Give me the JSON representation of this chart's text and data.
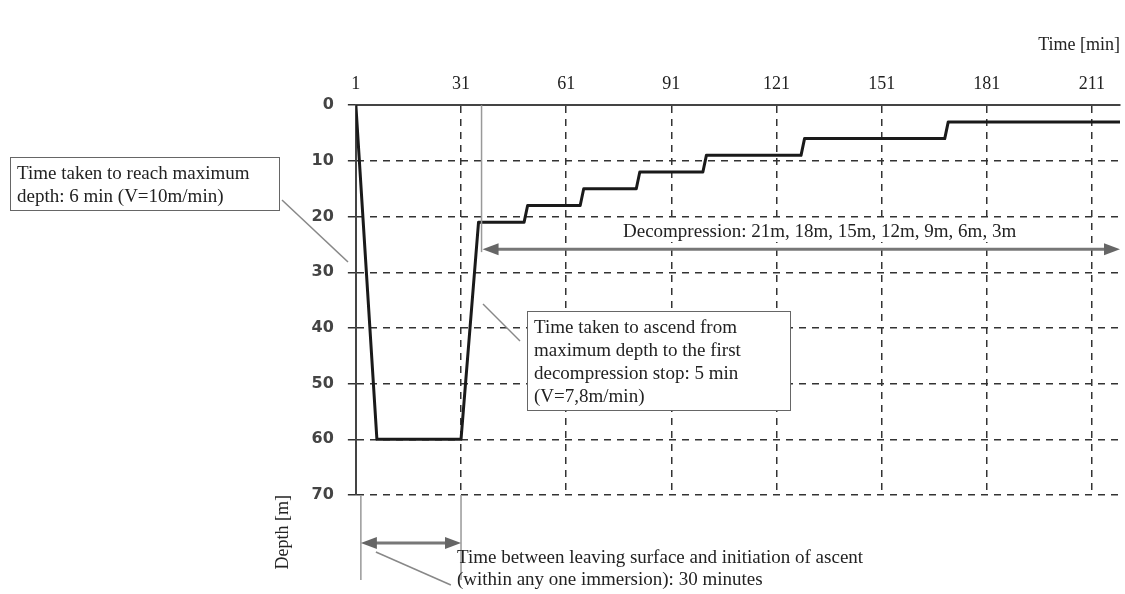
{
  "chart_data": {
    "type": "line",
    "xlabel": "Time [min]",
    "ylabel": "Depth [m]",
    "x": [
      1,
      7,
      31,
      36,
      49,
      50,
      65,
      66,
      81,
      82,
      100,
      101,
      128,
      129,
      169,
      170,
      219
    ],
    "series": [
      {
        "color": "#1a1a1a",
        "values": [
          0,
          60,
          60,
          21,
          21,
          18,
          18,
          15,
          15,
          12,
          12,
          9,
          9,
          6,
          6,
          3,
          3
        ]
      }
    ],
    "xlim": [
      1,
      219
    ],
    "xticks": [
      1,
      31,
      61,
      91,
      121,
      151,
      181,
      211
    ],
    "ylim": [
      70,
      0
    ],
    "yticks": [
      0,
      10,
      20,
      30,
      40,
      50,
      60,
      70
    ],
    "grid": true,
    "legend": false,
    "marker": "none",
    "line_style": "solid",
    "annotations": [
      "Time taken to reach maximum depth: 6 min (V=10m/min)",
      "Time taken to ascend from maximum depth to the first decompression stop: 5 min (V=7,8m/min)",
      "Decompression: 21m, 18m, 15m, 12m, 9m, 6m, 3m",
      "Time between leaving surface and initiation of ascent (within any one immersion): 30 minutes"
    ]
  }
}
